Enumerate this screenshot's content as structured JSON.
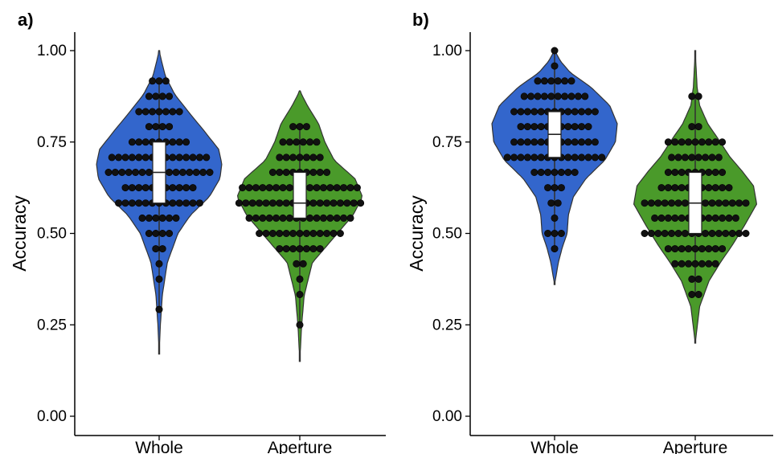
{
  "chart_data": [
    {
      "type": "violin",
      "panel_label": "a)",
      "ylabel": "Accuracy",
      "ylim": [
        0,
        1.05
      ],
      "yticks": [
        0.0,
        0.25,
        0.5,
        0.75,
        1.0
      ],
      "ytick_labels": [
        "0.00",
        "0.25",
        "0.50",
        "0.75",
        "1.00"
      ],
      "categories": [
        "Whole",
        "Aperture"
      ],
      "groups": [
        {
          "category": "Whole",
          "color": "#3366CC",
          "box": {
            "q1": 0.583,
            "median": 0.667,
            "q3": 0.75
          },
          "violin_range": [
            0.17,
            1.0
          ],
          "density": [
            [
              0.17,
              0.0
            ],
            [
              0.25,
              0.02
            ],
            [
              0.33,
              0.05
            ],
            [
              0.42,
              0.13
            ],
            [
              0.5,
              0.3
            ],
            [
              0.55,
              0.5
            ],
            [
              0.6,
              0.8
            ],
            [
              0.65,
              0.97
            ],
            [
              0.69,
              1.0
            ],
            [
              0.73,
              0.95
            ],
            [
              0.78,
              0.72
            ],
            [
              0.83,
              0.48
            ],
            [
              0.88,
              0.25
            ],
            [
              0.93,
              0.1
            ],
            [
              0.97,
              0.04
            ],
            [
              1.0,
              0.0
            ]
          ],
          "dots": [
            {
              "y": 0.917,
              "n": 3
            },
            {
              "y": 0.875,
              "n": 4
            },
            {
              "y": 0.833,
              "n": 7
            },
            {
              "y": 0.792,
              "n": 4
            },
            {
              "y": 0.75,
              "n": 9
            },
            {
              "y": 0.708,
              "n": 15
            },
            {
              "y": 0.667,
              "n": 16
            },
            {
              "y": 0.625,
              "n": 11
            },
            {
              "y": 0.583,
              "n": 13
            },
            {
              "y": 0.542,
              "n": 6
            },
            {
              "y": 0.5,
              "n": 4
            },
            {
              "y": 0.458,
              "n": 2
            },
            {
              "y": 0.417,
              "n": 1
            },
            {
              "y": 0.375,
              "n": 1
            },
            {
              "y": 0.292,
              "n": 1
            }
          ]
        },
        {
          "category": "Aperture",
          "color": "#4A9A2A",
          "box": {
            "q1": 0.542,
            "median": 0.583,
            "q3": 0.667
          },
          "violin_range": [
            0.15,
            0.89
          ],
          "density": [
            [
              0.15,
              0.0
            ],
            [
              0.25,
              0.03
            ],
            [
              0.33,
              0.07
            ],
            [
              0.42,
              0.2
            ],
            [
              0.5,
              0.6
            ],
            [
              0.55,
              0.85
            ],
            [
              0.6,
              1.0
            ],
            [
              0.65,
              0.88
            ],
            [
              0.7,
              0.55
            ],
            [
              0.75,
              0.4
            ],
            [
              0.8,
              0.3
            ],
            [
              0.85,
              0.12
            ],
            [
              0.89,
              0.0
            ]
          ],
          "dots": [
            {
              "y": 0.792,
              "n": 3
            },
            {
              "y": 0.75,
              "n": 6
            },
            {
              "y": 0.708,
              "n": 7
            },
            {
              "y": 0.667,
              "n": 9
            },
            {
              "y": 0.625,
              "n": 18
            },
            {
              "y": 0.583,
              "n": 19
            },
            {
              "y": 0.542,
              "n": 16
            },
            {
              "y": 0.5,
              "n": 13
            },
            {
              "y": 0.458,
              "n": 7
            },
            {
              "y": 0.417,
              "n": 2
            },
            {
              "y": 0.375,
              "n": 1
            },
            {
              "y": 0.333,
              "n": 1
            },
            {
              "y": 0.25,
              "n": 1
            }
          ]
        }
      ]
    },
    {
      "type": "violin",
      "panel_label": "b)",
      "ylabel": "Accuracy",
      "ylim": [
        0,
        1.05
      ],
      "yticks": [
        0.0,
        0.25,
        0.5,
        0.75,
        1.0
      ],
      "ytick_labels": [
        "0.00",
        "0.25",
        "0.50",
        "0.75",
        "1.00"
      ],
      "categories": [
        "Whole",
        "Aperture"
      ],
      "groups": [
        {
          "category": "Whole",
          "color": "#3366CC",
          "box": {
            "q1": 0.708,
            "median": 0.771,
            "q3": 0.833
          },
          "violin_range": [
            0.36,
            1.0
          ],
          "density": [
            [
              0.36,
              0.0
            ],
            [
              0.42,
              0.06
            ],
            [
              0.46,
              0.12
            ],
            [
              0.5,
              0.2
            ],
            [
              0.55,
              0.22
            ],
            [
              0.6,
              0.3
            ],
            [
              0.65,
              0.5
            ],
            [
              0.7,
              0.8
            ],
            [
              0.75,
              0.97
            ],
            [
              0.8,
              1.0
            ],
            [
              0.85,
              0.88
            ],
            [
              0.9,
              0.58
            ],
            [
              0.94,
              0.25
            ],
            [
              0.97,
              0.1
            ],
            [
              1.0,
              0.0
            ]
          ],
          "dots": [
            {
              "y": 1.0,
              "n": 1
            },
            {
              "y": 0.958,
              "n": 1
            },
            {
              "y": 0.917,
              "n": 6
            },
            {
              "y": 0.875,
              "n": 10
            },
            {
              "y": 0.833,
              "n": 13
            },
            {
              "y": 0.792,
              "n": 11
            },
            {
              "y": 0.75,
              "n": 13
            },
            {
              "y": 0.708,
              "n": 15
            },
            {
              "y": 0.667,
              "n": 7
            },
            {
              "y": 0.625,
              "n": 3
            },
            {
              "y": 0.583,
              "n": 2
            },
            {
              "y": 0.542,
              "n": 1
            },
            {
              "y": 0.5,
              "n": 3
            },
            {
              "y": 0.458,
              "n": 1
            }
          ]
        },
        {
          "category": "Aperture",
          "color": "#4A9A2A",
          "box": {
            "q1": 0.5,
            "median": 0.583,
            "q3": 0.667
          },
          "violin_range": [
            0.2,
            1.0
          ],
          "density": [
            [
              0.2,
              0.0
            ],
            [
              0.3,
              0.07
            ],
            [
              0.37,
              0.22
            ],
            [
              0.42,
              0.4
            ],
            [
              0.47,
              0.6
            ],
            [
              0.52,
              0.78
            ],
            [
              0.58,
              0.98
            ],
            [
              0.63,
              0.93
            ],
            [
              0.67,
              0.75
            ],
            [
              0.71,
              0.55
            ],
            [
              0.75,
              0.4
            ],
            [
              0.8,
              0.2
            ],
            [
              0.85,
              0.07
            ],
            [
              0.9,
              0.03
            ],
            [
              1.0,
              0.0
            ]
          ],
          "dots": [
            {
              "y": 0.875,
              "n": 2
            },
            {
              "y": 0.792,
              "n": 2
            },
            {
              "y": 0.75,
              "n": 9
            },
            {
              "y": 0.708,
              "n": 8
            },
            {
              "y": 0.667,
              "n": 9
            },
            {
              "y": 0.625,
              "n": 11
            },
            {
              "y": 0.583,
              "n": 16
            },
            {
              "y": 0.542,
              "n": 13
            },
            {
              "y": 0.5,
              "n": 16
            },
            {
              "y": 0.458,
              "n": 9
            },
            {
              "y": 0.417,
              "n": 7
            },
            {
              "y": 0.375,
              "n": 2
            },
            {
              "y": 0.333,
              "n": 2
            }
          ]
        }
      ]
    }
  ]
}
